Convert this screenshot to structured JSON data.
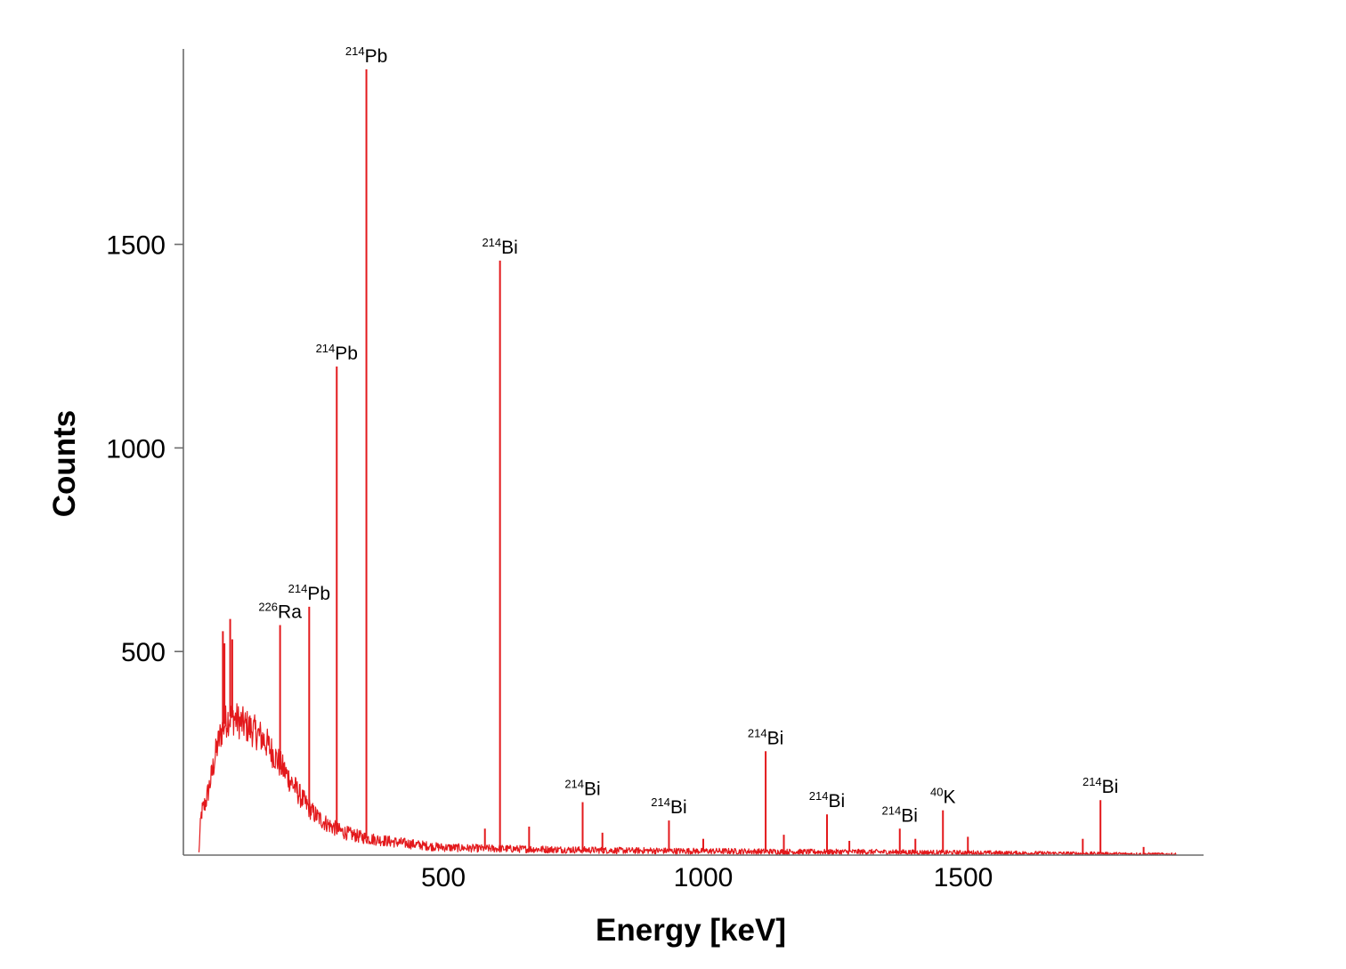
{
  "chart_data": {
    "type": "line",
    "title": "",
    "xlabel": "Energy [keV]",
    "ylabel": "Counts",
    "xlim": [
      0,
      1960
    ],
    "ylim": [
      0,
      1980
    ],
    "xticks": [
      {
        "value": 500,
        "label": "500"
      },
      {
        "value": 1000,
        "label": "1000"
      },
      {
        "value": 1500,
        "label": "1500"
      }
    ],
    "yticks": [
      {
        "value": 500,
        "label": "500"
      },
      {
        "value": 1000,
        "label": "1000"
      },
      {
        "value": 1500,
        "label": "1500"
      }
    ],
    "grid": false,
    "line_color": "#e3191c",
    "continuum": [
      {
        "x": 30,
        "y": 5
      },
      {
        "x": 32,
        "y": 60
      },
      {
        "x": 35,
        "y": 105
      },
      {
        "x": 40,
        "y": 120
      },
      {
        "x": 45,
        "y": 140
      },
      {
        "x": 50,
        "y": 170
      },
      {
        "x": 55,
        "y": 200
      },
      {
        "x": 60,
        "y": 235
      },
      {
        "x": 65,
        "y": 265
      },
      {
        "x": 70,
        "y": 290
      },
      {
        "x": 75,
        "y": 310
      },
      {
        "x": 80,
        "y": 325
      },
      {
        "x": 85,
        "y": 335
      },
      {
        "x": 90,
        "y": 340
      },
      {
        "x": 100,
        "y": 335
      },
      {
        "x": 110,
        "y": 325
      },
      {
        "x": 120,
        "y": 318
      },
      {
        "x": 130,
        "y": 310
      },
      {
        "x": 140,
        "y": 300
      },
      {
        "x": 150,
        "y": 290
      },
      {
        "x": 160,
        "y": 275
      },
      {
        "x": 170,
        "y": 255
      },
      {
        "x": 180,
        "y": 235
      },
      {
        "x": 190,
        "y": 215
      },
      {
        "x": 200,
        "y": 195
      },
      {
        "x": 210,
        "y": 175
      },
      {
        "x": 220,
        "y": 155
      },
      {
        "x": 230,
        "y": 135
      },
      {
        "x": 240,
        "y": 118
      },
      {
        "x": 250,
        "y": 103
      },
      {
        "x": 260,
        "y": 92
      },
      {
        "x": 270,
        "y": 82
      },
      {
        "x": 280,
        "y": 74
      },
      {
        "x": 290,
        "y": 67
      },
      {
        "x": 300,
        "y": 60
      },
      {
        "x": 320,
        "y": 52
      },
      {
        "x": 340,
        "y": 45
      },
      {
        "x": 360,
        "y": 40
      },
      {
        "x": 380,
        "y": 37
      },
      {
        "x": 400,
        "y": 33
      },
      {
        "x": 420,
        "y": 30
      },
      {
        "x": 440,
        "y": 27
      },
      {
        "x": 460,
        "y": 24
      },
      {
        "x": 480,
        "y": 21
      },
      {
        "x": 500,
        "y": 19
      },
      {
        "x": 550,
        "y": 17
      },
      {
        "x": 600,
        "y": 16
      },
      {
        "x": 650,
        "y": 15
      },
      {
        "x": 700,
        "y": 14
      },
      {
        "x": 750,
        "y": 13
      },
      {
        "x": 800,
        "y": 12
      },
      {
        "x": 850,
        "y": 11
      },
      {
        "x": 900,
        "y": 11
      },
      {
        "x": 950,
        "y": 10
      },
      {
        "x": 1000,
        "y": 10
      },
      {
        "x": 1100,
        "y": 9
      },
      {
        "x": 1200,
        "y": 8
      },
      {
        "x": 1300,
        "y": 8
      },
      {
        "x": 1400,
        "y": 7
      },
      {
        "x": 1500,
        "y": 6
      },
      {
        "x": 1600,
        "y": 5
      },
      {
        "x": 1700,
        "y": 4
      },
      {
        "x": 1800,
        "y": 3
      },
      {
        "x": 1900,
        "y": 2
      },
      {
        "x": 1910,
        "y": 2
      }
    ],
    "peaks": [
      {
        "energy": 76,
        "counts": 550
      },
      {
        "energy": 79,
        "counts": 520
      },
      {
        "energy": 90,
        "counts": 580
      },
      {
        "energy": 94,
        "counts": 530
      },
      {
        "energy": 186,
        "counts": 565,
        "nuclide": "Ra",
        "mass": "226"
      },
      {
        "energy": 242,
        "counts": 610,
        "nuclide": "Pb",
        "mass": "214"
      },
      {
        "energy": 295,
        "counts": 1200,
        "nuclide": "Pb",
        "mass": "214"
      },
      {
        "energy": 352,
        "counts": 1930,
        "nuclide": "Pb",
        "mass": "214"
      },
      {
        "energy": 580,
        "counts": 65
      },
      {
        "energy": 609,
        "counts": 1460,
        "nuclide": "Bi",
        "mass": "214"
      },
      {
        "energy": 665,
        "counts": 70
      },
      {
        "energy": 768,
        "counts": 130,
        "nuclide": "Bi",
        "mass": "214"
      },
      {
        "energy": 806,
        "counts": 55
      },
      {
        "energy": 934,
        "counts": 85,
        "nuclide": "Bi",
        "mass": "214"
      },
      {
        "energy": 1000,
        "counts": 40
      },
      {
        "energy": 1120,
        "counts": 255,
        "nuclide": "Bi",
        "mass": "214"
      },
      {
        "energy": 1155,
        "counts": 50
      },
      {
        "energy": 1238,
        "counts": 100,
        "nuclide": "Bi",
        "mass": "214"
      },
      {
        "energy": 1281,
        "counts": 35
      },
      {
        "energy": 1378,
        "counts": 65,
        "nuclide": "Bi",
        "mass": "214"
      },
      {
        "energy": 1408,
        "counts": 40
      },
      {
        "energy": 1461,
        "counts": 110,
        "nuclide": "K",
        "mass": "40"
      },
      {
        "energy": 1509,
        "counts": 45
      },
      {
        "energy": 1730,
        "counts": 40
      },
      {
        "energy": 1764,
        "counts": 135,
        "nuclide": "Bi",
        "mass": "214"
      },
      {
        "energy": 1847,
        "counts": 20
      }
    ],
    "annotations": [
      {
        "mass": "226",
        "symbol": "Ra",
        "energy": 186,
        "counts": 565
      },
      {
        "mass": "214",
        "symbol": "Pb",
        "energy": 242,
        "counts": 610
      },
      {
        "mass": "214",
        "symbol": "Pb",
        "energy": 295,
        "counts": 1200
      },
      {
        "mass": "214",
        "symbol": "Pb",
        "energy": 352,
        "counts": 1930
      },
      {
        "mass": "214",
        "symbol": "Bi",
        "energy": 609,
        "counts": 1460
      },
      {
        "mass": "214",
        "symbol": "Bi",
        "energy": 768,
        "counts": 130
      },
      {
        "mass": "214",
        "symbol": "Bi",
        "energy": 934,
        "counts": 85
      },
      {
        "mass": "214",
        "symbol": "Bi",
        "energy": 1120,
        "counts": 255
      },
      {
        "mass": "214",
        "symbol": "Bi",
        "energy": 1238,
        "counts": 100
      },
      {
        "mass": "214",
        "symbol": "Bi",
        "energy": 1378,
        "counts": 65
      },
      {
        "mass": "40",
        "symbol": "K",
        "energy": 1461,
        "counts": 110
      },
      {
        "mass": "214",
        "symbol": "Bi",
        "energy": 1764,
        "counts": 135
      }
    ]
  }
}
